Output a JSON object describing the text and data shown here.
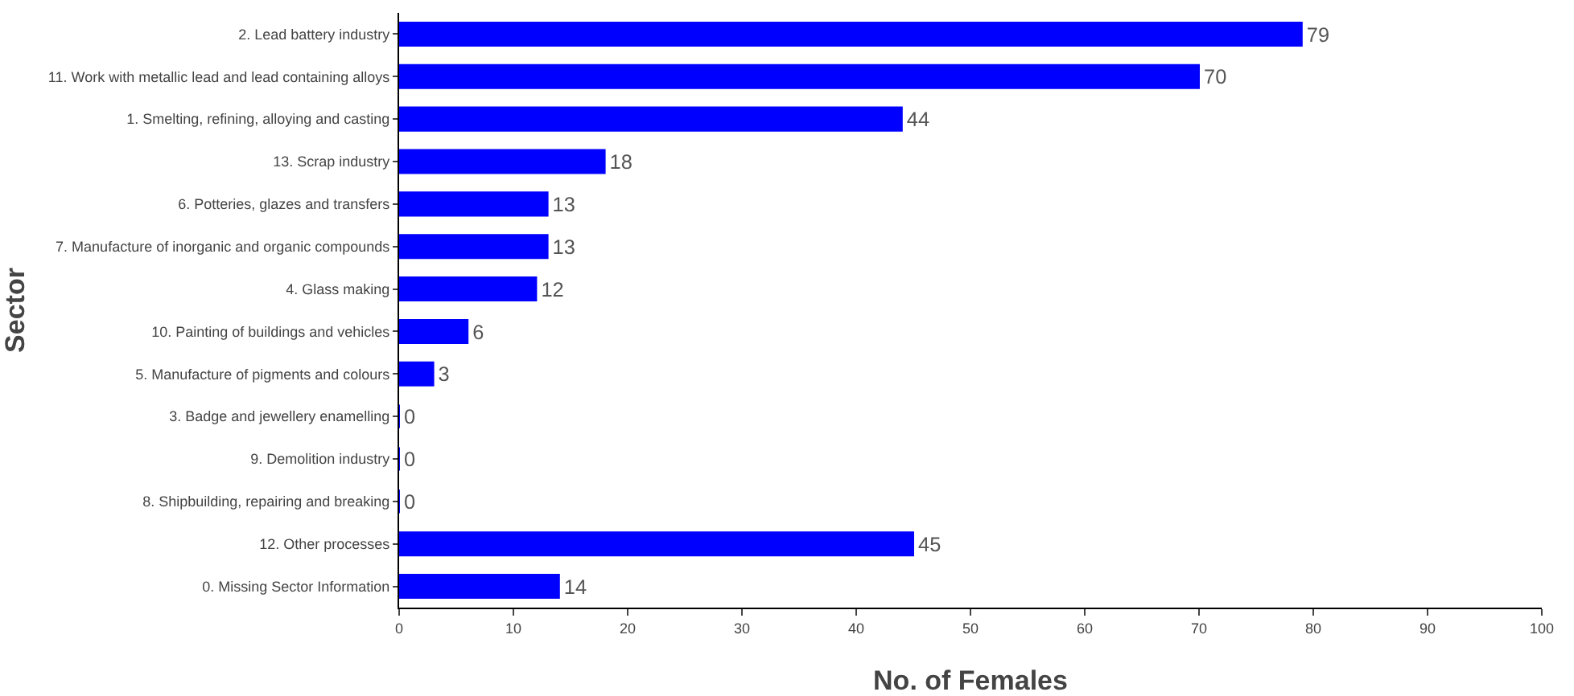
{
  "chart_data": {
    "type": "bar",
    "orientation": "horizontal",
    "xlabel": "No. of Females",
    "ylabel": "Sector",
    "categories": [
      "2. Lead battery industry",
      "11. Work with metallic lead and lead containing alloys",
      "1. Smelting, refining, alloying and casting",
      "13. Scrap industry",
      "6. Potteries, glazes and transfers",
      "7. Manufacture of inorganic and organic compounds",
      "4. Glass making",
      "10. Painting of buildings and vehicles",
      "5. Manufacture of pigments and colours",
      "3. Badge and jewellery enamelling",
      "9. Demolition industry",
      "8. Shipbuilding, repairing and breaking",
      "12. Other processes",
      "0. Missing Sector Information"
    ],
    "values": [
      79,
      70,
      44,
      18,
      13,
      13,
      12,
      6,
      3,
      0,
      0,
      0,
      45,
      14
    ],
    "color": "#0000ff",
    "data_labels": true,
    "xlim": [
      0,
      100
    ],
    "xticks": [
      0,
      10,
      20,
      30,
      40,
      50,
      60,
      70,
      80,
      90,
      100
    ],
    "grid": false,
    "legend": false
  }
}
